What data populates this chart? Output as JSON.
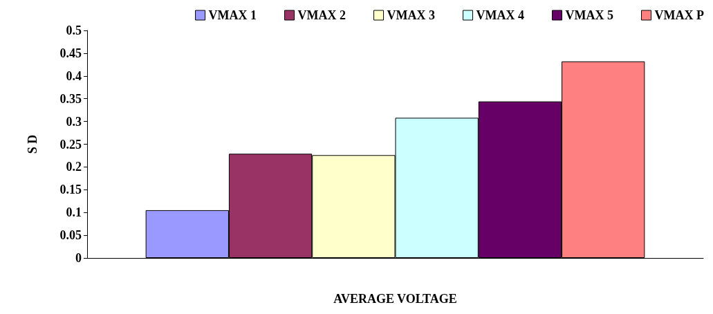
{
  "chart_data": {
    "type": "bar",
    "xlabel": "AVERAGE VOLTAGE",
    "ylabel": "S D",
    "categories": [
      null
    ],
    "series": [
      {
        "name": "VMAX 1",
        "color": "#9999ff",
        "values": [
          0.105
        ]
      },
      {
        "name": "VMAX 2",
        "color": "#993366",
        "values": [
          0.229
        ]
      },
      {
        "name": "VMAX 3",
        "color": "#ffffcc",
        "values": [
          0.226
        ]
      },
      {
        "name": "VMAX 4",
        "color": "#ccffff",
        "values": [
          0.308
        ]
      },
      {
        "name": "VMAX 5",
        "color": "#660066",
        "values": [
          0.344
        ]
      },
      {
        "name": "VMAX P",
        "color": "#ff8080",
        "values": [
          0.432
        ]
      }
    ],
    "ylim": [
      0,
      0.5
    ],
    "yticks": [
      0,
      0.05,
      0.1,
      0.15,
      0.2,
      0.25,
      0.3,
      0.35,
      0.4,
      0.45,
      0.5
    ],
    "grid": false,
    "legend": "top",
    "tick_labels": "y"
  }
}
